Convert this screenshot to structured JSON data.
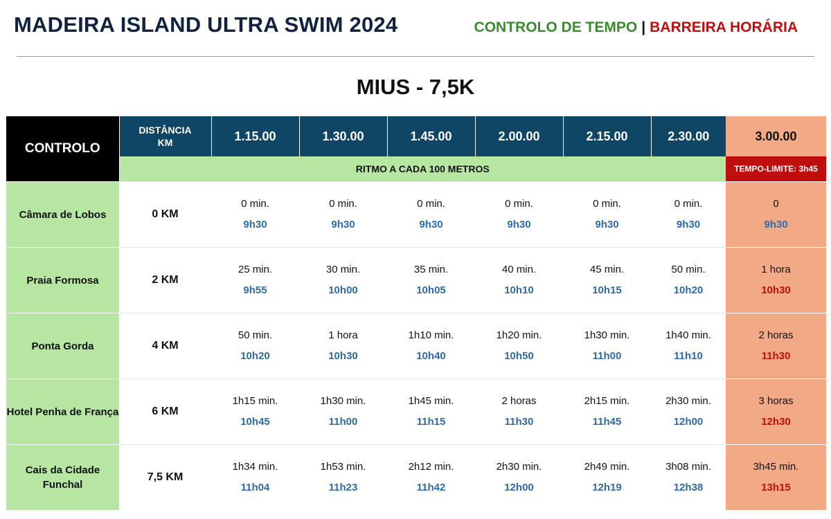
{
  "header": {
    "title": "MADEIRA ISLAND ULTRA SWIM 2024",
    "legend_green": "CONTROLO DE TEMPO",
    "legend_sep": "|",
    "legend_red": "BARREIRA HORÁRIA"
  },
  "subtitle": "MIUS - 7,5K",
  "table": {
    "col_controlo": "CONTROLO",
    "col_dist_line1": "DISTÂNCIA",
    "col_dist_line2": "KM",
    "times": [
      "1.15.00",
      "1.30.00",
      "1.45.00",
      "2.00.00",
      "2.15.00",
      "2.30.00"
    ],
    "limit_time": "3.00.00",
    "ritmo": "RITMO A CADA 100 METROS",
    "tempo_limite": "TEMPO-LIMITE: 3h45",
    "colors": {
      "navy": "#0f4565",
      "green": "#b6e6a2",
      "salmon": "#f2aa86",
      "red": "#c00d0d",
      "blue": "#2f6aa8"
    },
    "rows": [
      {
        "name": "Câmara de Lobos",
        "dist": "0 KM",
        "cells": [
          {
            "t": "0 min.",
            "h": "9h30"
          },
          {
            "t": "0 min.",
            "h": "9h30"
          },
          {
            "t": "0 min.",
            "h": "9h30"
          },
          {
            "t": "0 min.",
            "h": "9h30"
          },
          {
            "t": "0 min.",
            "h": "9h30"
          },
          {
            "t": "0 min.",
            "h": "9h30"
          }
        ],
        "limit": {
          "t": "0",
          "h": "9h30",
          "barrier": false
        }
      },
      {
        "name": "Praia Formosa",
        "dist": "2 KM",
        "cells": [
          {
            "t": "25 min.",
            "h": "9h55"
          },
          {
            "t": "30 min.",
            "h": "10h00"
          },
          {
            "t": "35 min.",
            "h": "10h05"
          },
          {
            "t": "40 min.",
            "h": "10h10"
          },
          {
            "t": "45 min.",
            "h": "10h15"
          },
          {
            "t": "50 min.",
            "h": "10h20"
          }
        ],
        "limit": {
          "t": "1 hora",
          "h": "10h30",
          "barrier": true
        }
      },
      {
        "name": "Ponta Gorda",
        "dist": "4 KM",
        "cells": [
          {
            "t": "50 min.",
            "h": "10h20"
          },
          {
            "t": "1 hora",
            "h": "10h30"
          },
          {
            "t": "1h10 min.",
            "h": "10h40"
          },
          {
            "t": "1h20 min.",
            "h": "10h50"
          },
          {
            "t": "1h30 min.",
            "h": "11h00"
          },
          {
            "t": "1h40 min.",
            "h": "11h10"
          }
        ],
        "limit": {
          "t": "2 horas",
          "h": "11h30",
          "barrier": true
        }
      },
      {
        "name": "Hotel Penha de França",
        "dist": "6 KM",
        "cells": [
          {
            "t": "1h15 min.",
            "h": "10h45"
          },
          {
            "t": "1h30 min.",
            "h": "11h00"
          },
          {
            "t": "1h45 min.",
            "h": "11h15"
          },
          {
            "t": "2 horas",
            "h": "11h30"
          },
          {
            "t": "2h15 min.",
            "h": "11h45"
          },
          {
            "t": "2h30 min.",
            "h": "12h00"
          }
        ],
        "limit": {
          "t": "3 horas",
          "h": "12h30",
          "barrier": true
        }
      },
      {
        "name": "Cais da Cidade Funchal",
        "dist": "7,5 KM",
        "cells": [
          {
            "t": "1h34 min.",
            "h": "11h04"
          },
          {
            "t": "1h53 min.",
            "h": "11h23"
          },
          {
            "t": "2h12 min.",
            "h": "11h42"
          },
          {
            "t": "2h30 min.",
            "h": "12h00"
          },
          {
            "t": "2h49 min.",
            "h": "12h19"
          },
          {
            "t": "3h08 min.",
            "h": "12h38"
          }
        ],
        "limit": {
          "t": "3h45 min.",
          "h": "13h15",
          "barrier": true
        }
      }
    ]
  }
}
